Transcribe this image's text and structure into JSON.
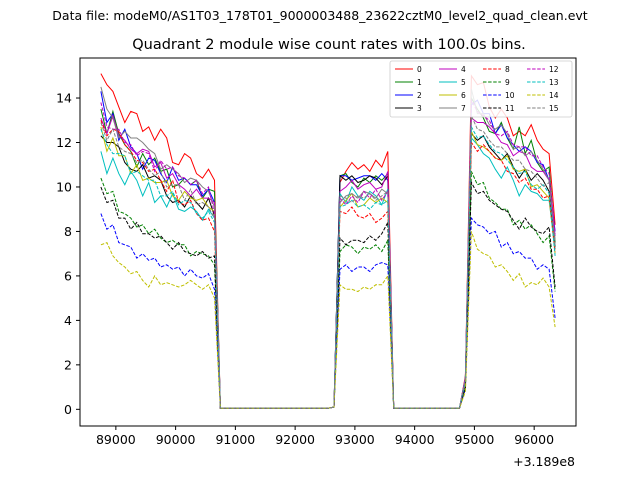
{
  "suptitle": "Data file: modeM0/AS1T03_178T01_9000003488_23622cztM0_level2_quad_clean.evt",
  "chart_data": {
    "type": "line",
    "title": "Quadrant 2 module wise count rates with 100.0s bins.",
    "xlabel": "",
    "ylabel": "",
    "x_offset_label": "+3.189e8",
    "xlim": [
      88400,
      96700
    ],
    "ylim": [
      -0.75,
      15.8
    ],
    "xticks": [
      89000,
      90000,
      91000,
      92000,
      93000,
      94000,
      95000,
      96000
    ],
    "yticks": [
      0,
      2,
      4,
      6,
      8,
      10,
      12,
      14
    ],
    "grid": false,
    "legend_position": "top-right",
    "segments": [
      {
        "start": 88750,
        "n": 20,
        "step": 100
      },
      {
        "start": 90750,
        "n": 19,
        "step": 100
      },
      {
        "start": 92650,
        "n": 10,
        "step": 100
      },
      {
        "start": 93650,
        "n": 12,
        "step": 100
      },
      {
        "start": 94850,
        "n": 16,
        "step": 100
      }
    ],
    "series": [
      {
        "name": "0",
        "color": "#ff0000",
        "dash": false,
        "segs": [
          [
            15.1,
            14.6,
            14.3,
            13.6,
            12.9,
            13.4,
            13.3,
            12.5,
            12.7,
            12.1,
            12.6,
            12.2,
            11.1,
            11.0,
            11.5,
            11.3,
            10.6,
            10.4,
            10.8,
            10.3
          ],
          [
            0.05
          ],
          [
            0.1,
            10.2,
            10.7,
            11.1,
            10.8,
            11.0,
            10.7,
            11.2,
            10.9,
            11.6
          ],
          [
            0.05
          ],
          [
            1.5,
            15.0,
            14.6,
            14.7,
            13.6,
            13.1,
            13.5,
            13.1,
            12.3,
            12.5,
            12.3,
            12.8,
            12.1,
            11.7,
            11.5,
            8.3
          ]
        ]
      },
      {
        "name": "1",
        "color": "#008000",
        "dash": false,
        "segs": [
          [
            13.5,
            12.4,
            13.4,
            12.4,
            11.9,
            11.6,
            10.9,
            11.5,
            11.0,
            11.3,
            10.7,
            10.8,
            10.0,
            10.1,
            10.4,
            10.1,
            10.3,
            9.5,
            9.9,
            9.8
          ],
          [
            0.05
          ],
          [
            0.1,
            10.5,
            10.6,
            10.2,
            10.0,
            10.4,
            10.2,
            10.5,
            10.3,
            10.6
          ],
          [
            0.05
          ],
          [
            1.4,
            14.0,
            13.5,
            13.1,
            12.5,
            12.4,
            12.9,
            12.2,
            11.7,
            12.7,
            11.5,
            12.1,
            11.1,
            10.7,
            10.9,
            7.5
          ]
        ]
      },
      {
        "name": "2",
        "color": "#0000ff",
        "dash": false,
        "segs": [
          [
            14.3,
            12.9,
            13.3,
            12.1,
            12.6,
            11.8,
            11.5,
            10.8,
            11.3,
            11.2,
            10.6,
            10.2,
            10.9,
            10.3,
            10.4,
            10.1,
            10.1,
            9.6,
            9.9,
            9.3
          ],
          [
            0.05
          ],
          [
            0.1,
            10.5,
            10.5,
            10.3,
            10.4,
            10.5,
            10.5,
            10.3,
            10.6,
            10.3
          ],
          [
            0.05
          ],
          [
            1.4,
            13.7,
            13.9,
            13.3,
            13.3,
            12.4,
            12.8,
            12.2,
            11.9,
            11.6,
            11.8,
            11.6,
            11.1,
            11.0,
            10.3,
            8.0
          ]
        ]
      },
      {
        "name": "3",
        "color": "#000000",
        "dash": false,
        "segs": [
          [
            12.3,
            12.0,
            12.0,
            11.8,
            11.1,
            10.8,
            10.7,
            11.0,
            10.4,
            10.5,
            10.3,
            9.6,
            9.3,
            9.4,
            9.1,
            9.6,
            9.3,
            9.0,
            9.5,
            8.7
          ],
          [
            0.05
          ],
          [
            0.1,
            10.5,
            10.3,
            10.5,
            10.2,
            10.3,
            10.5,
            10.4,
            10.1,
            10.5
          ],
          [
            0.05
          ],
          [
            1.3,
            12.4,
            12.1,
            12.3,
            11.8,
            11.5,
            11.2,
            11.5,
            10.9,
            10.4,
            10.8,
            10.3,
            10.6,
            10.3,
            9.8,
            7.3
          ]
        ]
      },
      {
        "name": "4",
        "color": "#bf00bf",
        "dash": false,
        "segs": [
          [
            13.1,
            12.4,
            13.2,
            12.3,
            12.1,
            11.7,
            11.5,
            11.7,
            11.6,
            10.9,
            11.1,
            10.4,
            10.6,
            10.1,
            9.9,
            9.6,
            9.9,
            9.5,
            9.5,
            9.3
          ],
          [
            0.05
          ],
          [
            0.1,
            9.8,
            10.0,
            10.3,
            9.9,
            10.1,
            10.2,
            9.9,
            10.0,
            10.7
          ],
          [
            0.05
          ],
          [
            1.4,
            13.1,
            12.9,
            12.9,
            12.7,
            12.4,
            12.0,
            11.9,
            11.4,
            11.6,
            11.5,
            10.9,
            10.7,
            10.7,
            10.3,
            7.8
          ]
        ]
      },
      {
        "name": "5",
        "color": "#00bfbf",
        "dash": false,
        "segs": [
          [
            11.6,
            10.6,
            11.3,
            10.6,
            10.1,
            10.7,
            10.3,
            9.6,
            10.2,
            9.3,
            9.6,
            9.1,
            9.7,
            9.0,
            8.9,
            9.1,
            8.9,
            8.5,
            9.0,
            8.6
          ],
          [
            0.05
          ],
          [
            0.1,
            9.7,
            9.3,
            10.0,
            9.6,
            9.4,
            9.8,
            9.6,
            9.2,
            9.9
          ],
          [
            0.05
          ],
          [
            1.3,
            12.2,
            11.9,
            11.5,
            11.3,
            10.8,
            10.4,
            10.9,
            10.3,
            9.6,
            10.1,
            9.8,
            9.7,
            9.4,
            9.4,
            7.2
          ]
        ]
      },
      {
        "name": "6",
        "color": "#bfbf00",
        "dash": false,
        "segs": [
          [
            12.7,
            11.6,
            12.2,
            11.4,
            11.4,
            10.6,
            11.0,
            10.3,
            10.4,
            10.2,
            10.2,
            10.3,
            9.6,
            9.4,
            9.8,
            9.5,
            9.4,
            9.5,
            9.1,
            8.9
          ],
          [
            0.05
          ],
          [
            0.1,
            9.1,
            9.4,
            9.7,
            9.1,
            9.2,
            9.5,
            9.3,
            9.5,
            9.3
          ],
          [
            0.05
          ],
          [
            1.3,
            12.5,
            11.9,
            11.8,
            11.6,
            11.3,
            11.2,
            11.4,
            10.8,
            10.7,
            10.8,
            10.0,
            10.1,
            9.8,
            9.5,
            7.0
          ]
        ]
      },
      {
        "name": "7",
        "color": "#808080",
        "dash": false,
        "segs": [
          [
            14.5,
            13.5,
            13.1,
            12.2,
            12.5,
            12.2,
            12.2,
            12.0,
            11.7,
            11.5,
            10.8,
            11.0,
            10.8,
            10.6,
            10.2,
            10.4,
            10.3,
            10.0,
            9.8,
            9.1
          ],
          [
            0.05
          ],
          [
            0.1,
            9.3,
            9.6,
            9.7,
            9.5,
            9.8,
            9.7,
            9.5,
            9.9,
            9.7
          ],
          [
            0.05
          ],
          [
            1.4,
            14.4,
            13.3,
            13.3,
            12.8,
            12.6,
            12.8,
            12.4,
            11.7,
            11.8,
            11.4,
            11.6,
            11.2,
            10.8,
            10.3,
            7.6
          ]
        ]
      },
      {
        "name": "8",
        "color": "#ff0000",
        "dash": true,
        "segs": [
          [
            13.0,
            12.3,
            12.6,
            12.5,
            11.9,
            11.6,
            11.2,
            11.1,
            10.7,
            10.8,
            10.3,
            9.8,
            10.3,
            9.3,
            9.2,
            9.4,
            8.8,
            8.5,
            8.6,
            8.0
          ],
          [
            0.05
          ],
          [
            0.1,
            8.9,
            8.8,
            9.1,
            8.7,
            8.6,
            8.8,
            8.4,
            8.6,
            8.9
          ],
          [
            0.05
          ],
          [
            1.3,
            12.0,
            11.6,
            11.9,
            11.6,
            11.3,
            11.2,
            10.7,
            10.6,
            10.2,
            10.4,
            9.9,
            9.9,
            9.5,
            9.6,
            7.1
          ]
        ]
      },
      {
        "name": "9",
        "color": "#008000",
        "dash": true,
        "segs": [
          [
            10.4,
            9.7,
            9.8,
            8.9,
            8.8,
            8.6,
            8.2,
            8.3,
            7.9,
            8.1,
            7.7,
            7.5,
            7.6,
            7.4,
            7.4,
            6.9,
            7.1,
            7.0,
            6.9,
            6.5
          ],
          [
            0.05
          ],
          [
            0.1,
            7.1,
            7.4,
            7.3,
            7.0,
            7.3,
            7.2,
            7.4,
            7.1,
            7.6
          ],
          [
            0.05
          ],
          [
            1.0,
            10.7,
            10.1,
            10.2,
            9.5,
            9.3,
            9.0,
            9.0,
            8.3,
            8.5,
            8.1,
            8.3,
            7.9,
            7.5,
            7.8,
            5.3
          ]
        ]
      },
      {
        "name": "10",
        "color": "#0000ff",
        "dash": true,
        "segs": [
          [
            8.8,
            8.1,
            8.3,
            7.5,
            7.4,
            7.3,
            6.8,
            7.0,
            6.7,
            6.8,
            6.4,
            6.5,
            6.3,
            6.4,
            6.0,
            6.3,
            6.0,
            5.9,
            6.1,
            5.4
          ],
          [
            0.05
          ],
          [
            0.1,
            6.3,
            6.5,
            6.2,
            6.4,
            6.4,
            6.2,
            6.5,
            6.6,
            6.5
          ],
          [
            0.05
          ],
          [
            0.9,
            8.6,
            8.3,
            8.2,
            7.9,
            8.0,
            7.3,
            7.5,
            7.0,
            7.1,
            6.8,
            6.8,
            6.3,
            6.5,
            6.3,
            4.1
          ]
        ]
      },
      {
        "name": "11",
        "color": "#000000",
        "dash": true,
        "segs": [
          [
            10.0,
            9.3,
            9.4,
            8.6,
            8.6,
            8.1,
            8.4,
            7.9,
            7.9,
            7.7,
            7.8,
            7.5,
            7.2,
            7.5,
            7.1,
            7.0,
            6.9,
            7.1,
            6.8,
            6.9
          ],
          [
            0.05
          ],
          [
            0.1,
            7.7,
            7.4,
            7.6,
            7.6,
            7.5,
            7.8,
            7.6,
            7.9,
            8.4
          ],
          [
            0.05
          ],
          [
            1.0,
            10.2,
            9.7,
            9.8,
            9.4,
            9.2,
            9.0,
            8.9,
            8.5,
            8.1,
            8.6,
            8.2,
            8.0,
            7.9,
            8.2,
            5.5
          ]
        ]
      },
      {
        "name": "12",
        "color": "#bf00bf",
        "dash": true,
        "segs": [
          [
            13.8,
            12.7,
            12.6,
            12.6,
            12.0,
            11.9,
            11.4,
            11.6,
            11.5,
            10.7,
            11.2,
            10.8,
            10.9,
            10.5,
            10.4,
            10.1,
            10.3,
            9.7,
            10.0,
            8.8
          ],
          [
            0.05
          ],
          [
            0.1,
            9.5,
            9.2,
            9.6,
            9.3,
            9.8,
            9.5,
            9.9,
            9.4,
            9.8
          ],
          [
            0.05
          ],
          [
            1.4,
            13.9,
            13.4,
            13.2,
            13.0,
            12.4,
            12.3,
            12.5,
            11.9,
            11.8,
            11.8,
            11.4,
            11.4,
            10.9,
            10.6,
            7.9
          ]
        ]
      },
      {
        "name": "13",
        "color": "#00bfbf",
        "dash": true,
        "segs": [
          [
            12.6,
            11.9,
            11.5,
            11.5,
            11.4,
            10.6,
            10.7,
            10.5,
            10.3,
            10.3,
            9.6,
            9.6,
            9.8,
            9.2,
            9.4,
            9.3,
            8.8,
            8.6,
            8.9,
            8.4
          ],
          [
            0.05
          ],
          [
            0.1,
            9.1,
            9.2,
            9.4,
            9.1,
            9.2,
            9.0,
            9.3,
            9.2,
            9.4
          ],
          [
            0.05
          ],
          [
            1.3,
            12.7,
            12.2,
            12.3,
            11.9,
            11.6,
            11.5,
            11.2,
            10.9,
            10.6,
            10.7,
            10.1,
            9.9,
            10.1,
            9.7,
            6.9
          ]
        ]
      },
      {
        "name": "14",
        "color": "#bfbf00",
        "dash": true,
        "segs": [
          [
            7.4,
            7.5,
            6.9,
            6.6,
            6.4,
            6.1,
            6.2,
            5.8,
            5.5,
            6.0,
            5.6,
            5.7,
            5.6,
            5.5,
            5.6,
            5.8,
            5.6,
            5.4,
            5.6,
            5.0
          ],
          [
            0.05
          ],
          [
            0.1,
            5.6,
            5.4,
            5.4,
            5.3,
            5.5,
            5.4,
            5.6,
            5.6,
            6.0
          ],
          [
            0.05
          ],
          [
            0.8,
            8.0,
            7.2,
            7.0,
            6.9,
            6.4,
            6.5,
            6.2,
            5.8,
            6.1,
            5.5,
            5.7,
            5.6,
            5.9,
            5.5,
            3.7
          ]
        ]
      },
      {
        "name": "15",
        "color": "#808080",
        "dash": true,
        "segs": [
          [
            12.9,
            12.1,
            12.6,
            11.8,
            11.6,
            11.5,
            11.1,
            11.2,
            10.8,
            10.5,
            10.7,
            10.0,
            10.1,
            10.1,
            9.4,
            9.9,
            9.2,
            9.3,
            9.1,
            8.6
          ],
          [
            0.05
          ],
          [
            0.1,
            9.6,
            9.5,
            9.3,
            9.6,
            9.5,
            9.7,
            9.4,
            9.6,
            9.8
          ],
          [
            0.05
          ],
          [
            1.3,
            13.2,
            12.6,
            12.5,
            12.1,
            11.8,
            11.8,
            11.5,
            11.2,
            11.2,
            10.8,
            10.7,
            10.4,
            10.0,
            10.2,
            7.3
          ]
        ]
      }
    ]
  }
}
